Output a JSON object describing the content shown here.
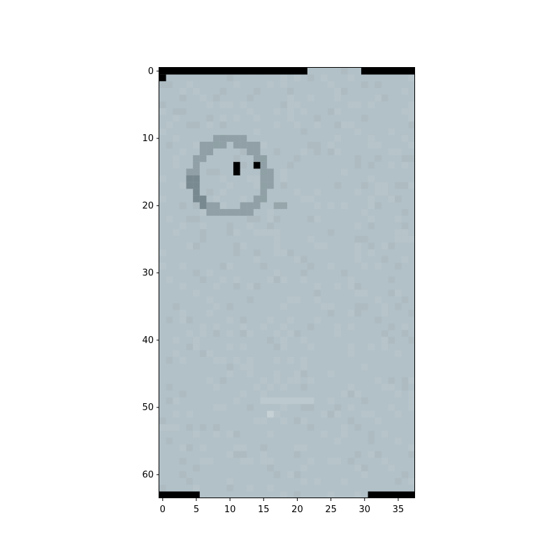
{
  "image_axes": {
    "x_ticks": [
      "0",
      "5",
      "10",
      "15",
      "20",
      "25",
      "30",
      "35"
    ],
    "y_ticks": [
      "0",
      "10",
      "20",
      "30",
      "40",
      "50",
      "60"
    ]
  },
  "image": {
    "columns": 38,
    "rows": 64,
    "colors": {
      "background": "#b2c1c7",
      "light_patch": "#bcc9ce",
      "ring_dark": "#8a9aa0",
      "ring_darker": "#6f7f86",
      "black": "#000000"
    }
  }
}
